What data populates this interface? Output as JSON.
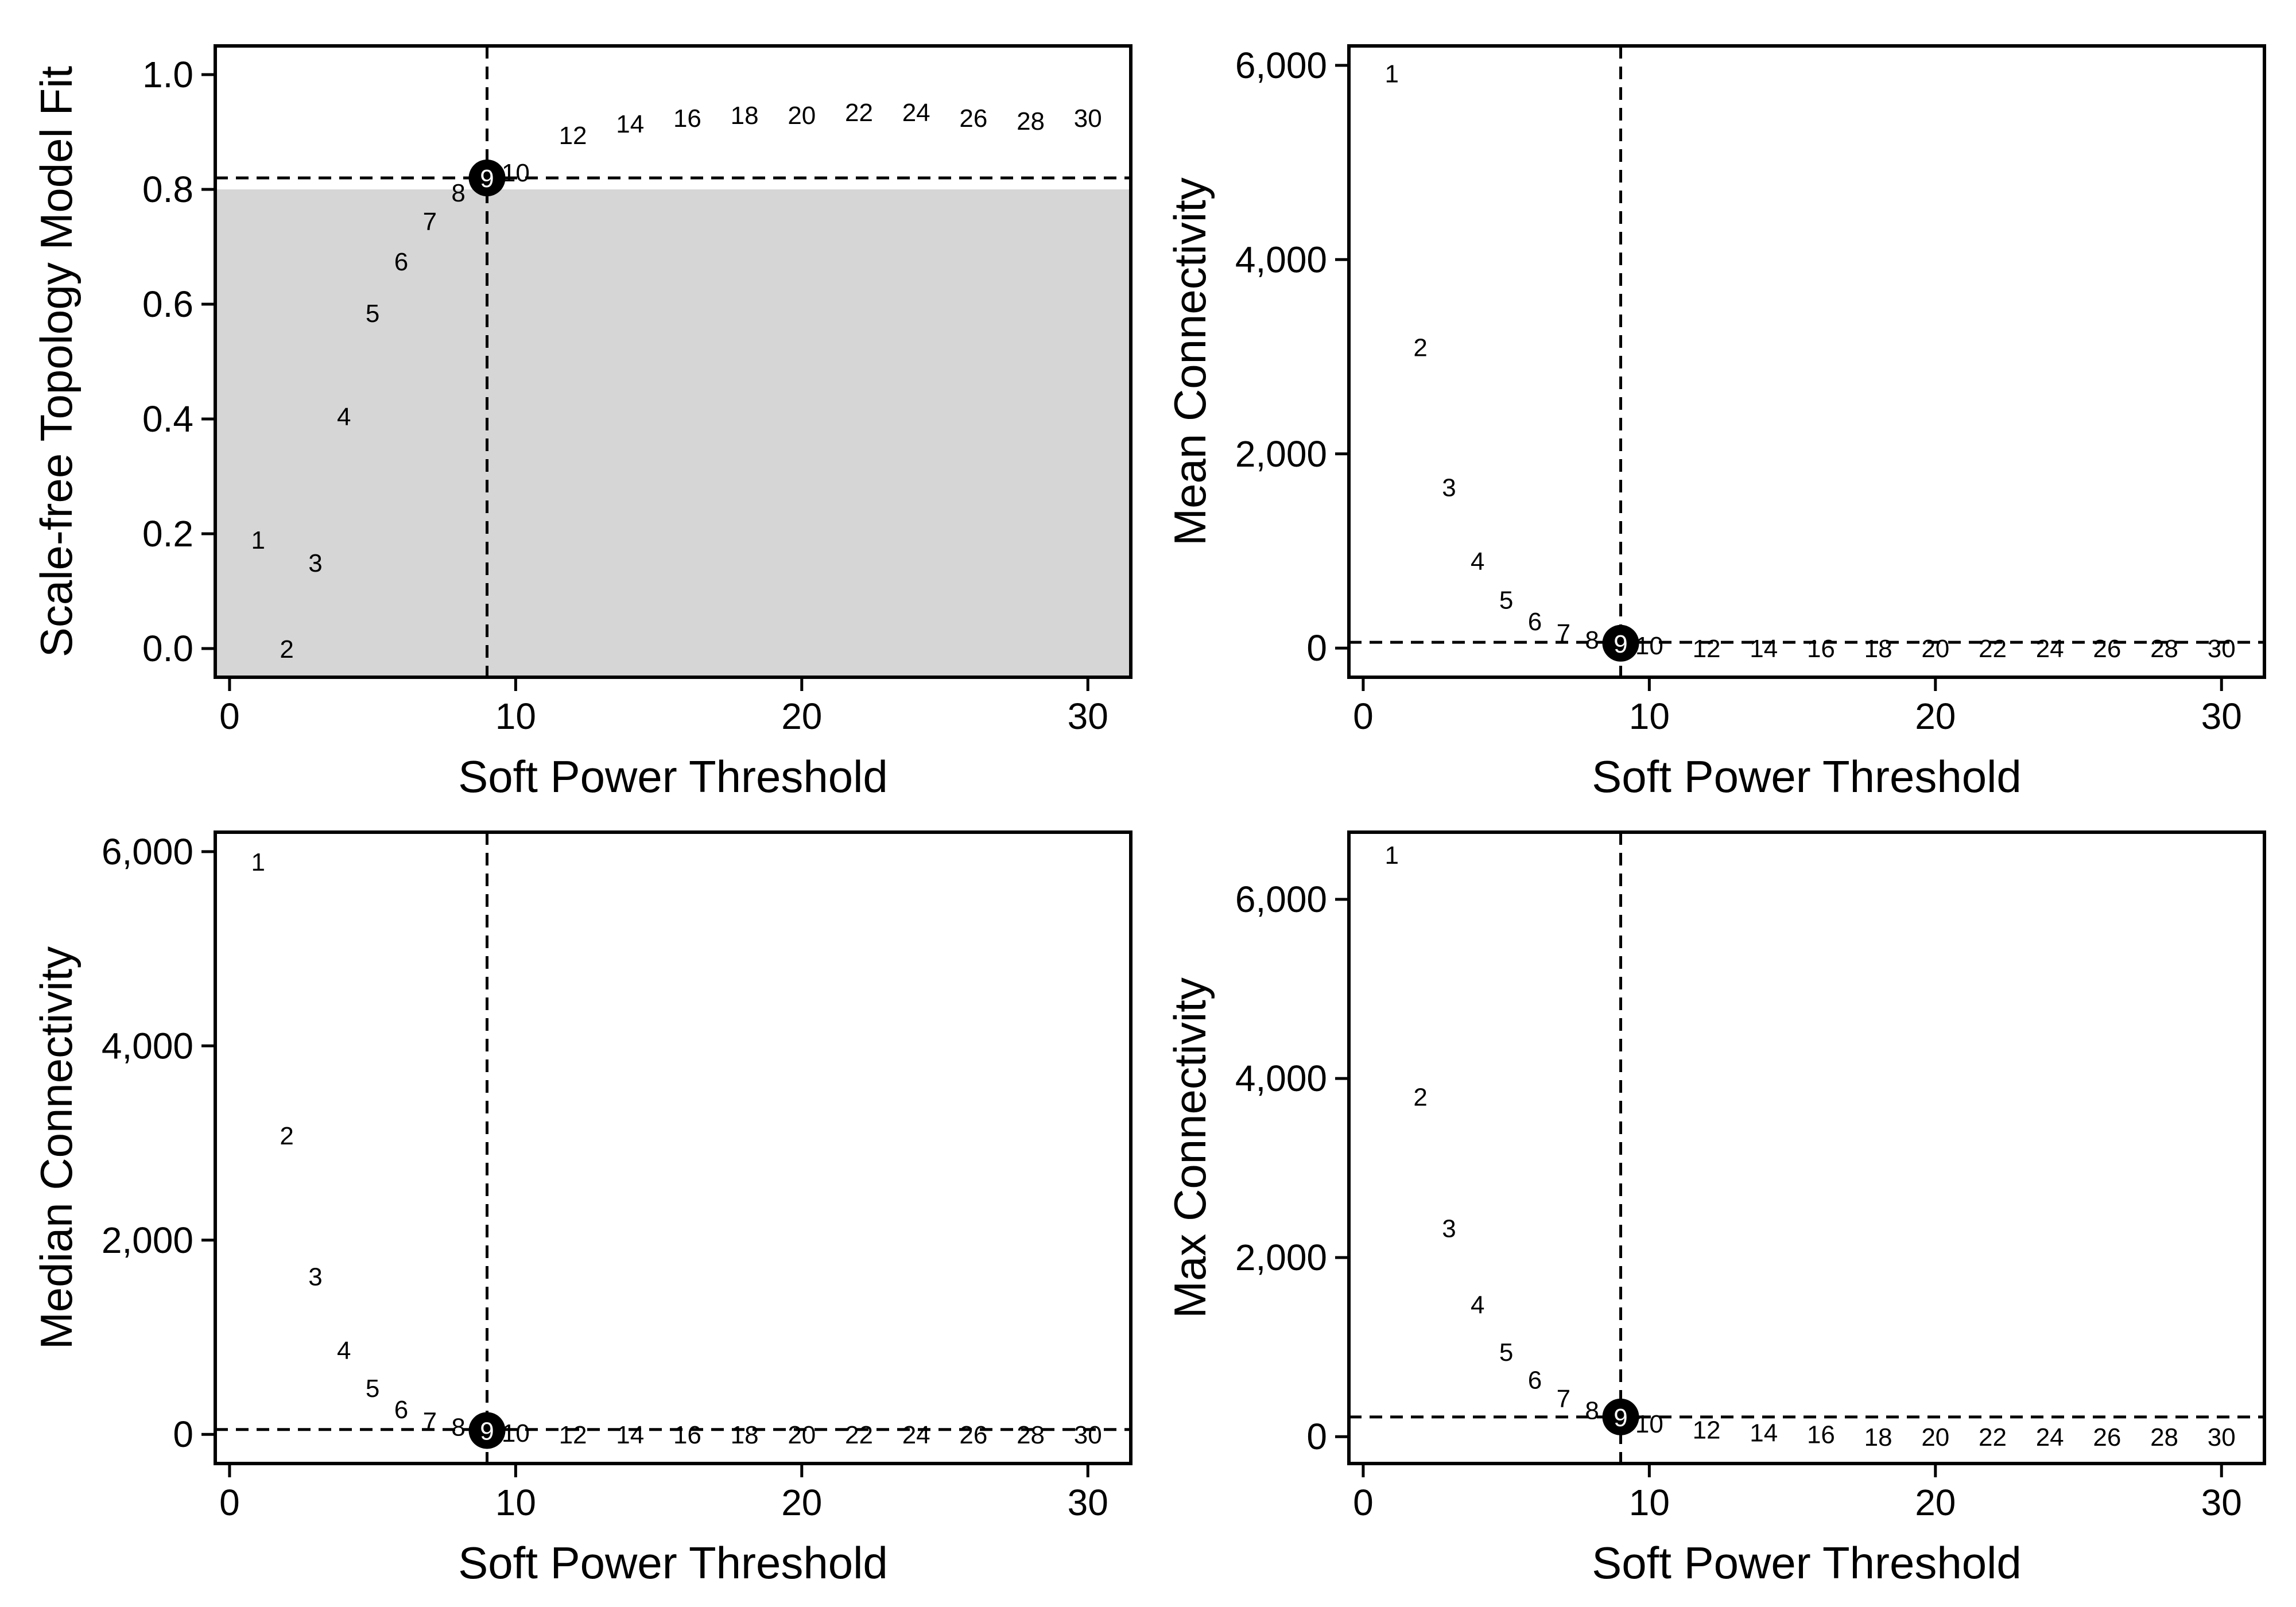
{
  "figure": {
    "panel_border_color": "#000000",
    "shade_color": "#d6d6d6",
    "selected_marker_color": "#000000",
    "selected_label_color": "#ffffff",
    "reference_line_style": "dashed"
  },
  "chart_data": [
    {
      "type": "scatter",
      "marker": "text",
      "title": "",
      "xlabel": "Soft Power Threshold",
      "ylabel": "Scale-free Topology Model Fit",
      "xlim": [
        -0.5,
        31.5
      ],
      "ylim": [
        -0.05,
        1.05
      ],
      "xticks": [
        0,
        10,
        20,
        30
      ],
      "xtick_labels": [
        "0",
        "10",
        "20",
        "30"
      ],
      "yticks": [
        0.0,
        0.2,
        0.4,
        0.6,
        0.8,
        1.0
      ],
      "ytick_labels": [
        "0.0",
        "0.2",
        "0.4",
        "0.6",
        "0.8",
        "1.0"
      ],
      "grid": false,
      "shaded_region": {
        "ymin": -0.05,
        "ymax": 0.8
      },
      "selected_power": 9,
      "hline": 0.82,
      "points": [
        {
          "x": 1,
          "y": 0.19,
          "label": "1"
        },
        {
          "x": 2,
          "y": 0.0,
          "label": "2"
        },
        {
          "x": 3,
          "y": 0.15,
          "label": "3"
        },
        {
          "x": 4,
          "y": 0.405,
          "label": "4"
        },
        {
          "x": 5,
          "y": 0.585,
          "label": "5"
        },
        {
          "x": 6,
          "y": 0.675,
          "label": "6"
        },
        {
          "x": 7,
          "y": 0.745,
          "label": "7"
        },
        {
          "x": 8,
          "y": 0.795,
          "label": "8"
        },
        {
          "x": 9,
          "y": 0.82,
          "label": "9"
        },
        {
          "x": 10,
          "y": 0.83,
          "label": "10"
        },
        {
          "x": 12,
          "y": 0.895,
          "label": "12"
        },
        {
          "x": 14,
          "y": 0.915,
          "label": "14"
        },
        {
          "x": 16,
          "y": 0.925,
          "label": "16"
        },
        {
          "x": 18,
          "y": 0.93,
          "label": "18"
        },
        {
          "x": 20,
          "y": 0.93,
          "label": "20"
        },
        {
          "x": 22,
          "y": 0.935,
          "label": "22"
        },
        {
          "x": 24,
          "y": 0.935,
          "label": "24"
        },
        {
          "x": 26,
          "y": 0.925,
          "label": "26"
        },
        {
          "x": 28,
          "y": 0.92,
          "label": "28"
        },
        {
          "x": 30,
          "y": 0.925,
          "label": "30"
        }
      ]
    },
    {
      "type": "scatter",
      "marker": "text",
      "title": "",
      "xlabel": "Soft Power Threshold",
      "ylabel": "Mean Connectivity",
      "xlim": [
        -0.5,
        31.5
      ],
      "ylim": [
        -300,
        6200
      ],
      "xticks": [
        0,
        10,
        20,
        30
      ],
      "xtick_labels": [
        "0",
        "10",
        "20",
        "30"
      ],
      "yticks": [
        0,
        2000,
        4000,
        6000
      ],
      "ytick_labels": [
        "0",
        "2,000",
        "4,000",
        "6,000"
      ],
      "grid": false,
      "selected_power": 9,
      "hline": 60,
      "points": [
        {
          "x": 1,
          "y": 5920,
          "label": "1"
        },
        {
          "x": 2,
          "y": 3100,
          "label": "2"
        },
        {
          "x": 3,
          "y": 1660,
          "label": "3"
        },
        {
          "x": 4,
          "y": 900,
          "label": "4"
        },
        {
          "x": 5,
          "y": 500,
          "label": "5"
        },
        {
          "x": 6,
          "y": 280,
          "label": "6"
        },
        {
          "x": 7,
          "y": 160,
          "label": "7"
        },
        {
          "x": 8,
          "y": 90,
          "label": "8"
        },
        {
          "x": 9,
          "y": 50,
          "label": "9"
        },
        {
          "x": 10,
          "y": 30,
          "label": "10"
        },
        {
          "x": 12,
          "y": 0,
          "label": "12"
        },
        {
          "x": 14,
          "y": 0,
          "label": "14"
        },
        {
          "x": 16,
          "y": 0,
          "label": "16"
        },
        {
          "x": 18,
          "y": 0,
          "label": "18"
        },
        {
          "x": 20,
          "y": 0,
          "label": "20"
        },
        {
          "x": 22,
          "y": 0,
          "label": "22"
        },
        {
          "x": 24,
          "y": 0,
          "label": "24"
        },
        {
          "x": 26,
          "y": 0,
          "label": "26"
        },
        {
          "x": 28,
          "y": 0,
          "label": "28"
        },
        {
          "x": 30,
          "y": 0,
          "label": "30"
        }
      ]
    },
    {
      "type": "scatter",
      "marker": "text",
      "title": "",
      "xlabel": "Soft Power Threshold",
      "ylabel": "Median Connectivity",
      "xlim": [
        -0.5,
        31.5
      ],
      "ylim": [
        -300,
        6200
      ],
      "xticks": [
        0,
        10,
        20,
        30
      ],
      "xtick_labels": [
        "0",
        "10",
        "20",
        "30"
      ],
      "yticks": [
        0,
        2000,
        4000,
        6000
      ],
      "ytick_labels": [
        "0",
        "2,000",
        "4,000",
        "6,000"
      ],
      "grid": false,
      "selected_power": 9,
      "hline": 50,
      "points": [
        {
          "x": 1,
          "y": 5900,
          "label": "1"
        },
        {
          "x": 2,
          "y": 3080,
          "label": "2"
        },
        {
          "x": 3,
          "y": 1630,
          "label": "3"
        },
        {
          "x": 4,
          "y": 870,
          "label": "4"
        },
        {
          "x": 5,
          "y": 480,
          "label": "5"
        },
        {
          "x": 6,
          "y": 260,
          "label": "6"
        },
        {
          "x": 7,
          "y": 140,
          "label": "7"
        },
        {
          "x": 8,
          "y": 80,
          "label": "8"
        },
        {
          "x": 9,
          "y": 40,
          "label": "9"
        },
        {
          "x": 10,
          "y": 20,
          "label": "10"
        },
        {
          "x": 12,
          "y": 0,
          "label": "12"
        },
        {
          "x": 14,
          "y": 0,
          "label": "14"
        },
        {
          "x": 16,
          "y": 0,
          "label": "16"
        },
        {
          "x": 18,
          "y": 0,
          "label": "18"
        },
        {
          "x": 20,
          "y": 0,
          "label": "20"
        },
        {
          "x": 22,
          "y": 0,
          "label": "22"
        },
        {
          "x": 24,
          "y": 0,
          "label": "24"
        },
        {
          "x": 26,
          "y": 0,
          "label": "26"
        },
        {
          "x": 28,
          "y": 0,
          "label": "28"
        },
        {
          "x": 30,
          "y": 0,
          "label": "30"
        }
      ]
    },
    {
      "type": "scatter",
      "marker": "text",
      "title": "",
      "xlabel": "Soft Power Threshold",
      "ylabel": "Max Connectivity",
      "xlim": [
        -0.5,
        31.5
      ],
      "ylim": [
        -300,
        6750
      ],
      "xticks": [
        0,
        10,
        20,
        30
      ],
      "xtick_labels": [
        "0",
        "10",
        "20",
        "30"
      ],
      "yticks": [
        0,
        2000,
        4000,
        6000
      ],
      "ytick_labels": [
        "0",
        "2,000",
        "4,000",
        "6,000"
      ],
      "grid": false,
      "selected_power": 9,
      "hline": 220,
      "points": [
        {
          "x": 1,
          "y": 6500,
          "label": "1"
        },
        {
          "x": 2,
          "y": 3800,
          "label": "2"
        },
        {
          "x": 3,
          "y": 2330,
          "label": "3"
        },
        {
          "x": 4,
          "y": 1480,
          "label": "4"
        },
        {
          "x": 5,
          "y": 950,
          "label": "5"
        },
        {
          "x": 6,
          "y": 640,
          "label": "6"
        },
        {
          "x": 7,
          "y": 430,
          "label": "7"
        },
        {
          "x": 8,
          "y": 300,
          "label": "8"
        },
        {
          "x": 9,
          "y": 220,
          "label": "9"
        },
        {
          "x": 10,
          "y": 150,
          "label": "10"
        },
        {
          "x": 12,
          "y": 80,
          "label": "12"
        },
        {
          "x": 14,
          "y": 50,
          "label": "14"
        },
        {
          "x": 16,
          "y": 30,
          "label": "16"
        },
        {
          "x": 18,
          "y": 0,
          "label": "18"
        },
        {
          "x": 20,
          "y": 0,
          "label": "20"
        },
        {
          "x": 22,
          "y": 0,
          "label": "22"
        },
        {
          "x": 24,
          "y": 0,
          "label": "24"
        },
        {
          "x": 26,
          "y": 0,
          "label": "26"
        },
        {
          "x": 28,
          "y": 0,
          "label": "28"
        },
        {
          "x": 30,
          "y": 0,
          "label": "30"
        }
      ]
    }
  ]
}
